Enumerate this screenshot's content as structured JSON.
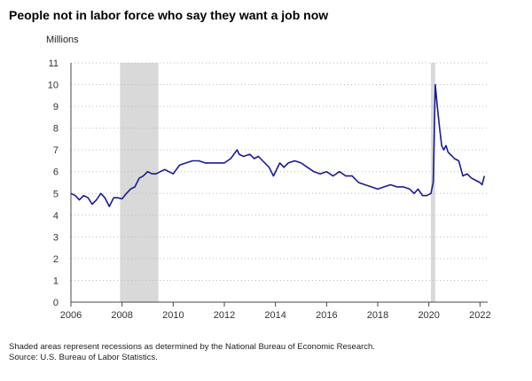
{
  "title": "People not in labor force who say they want a job now",
  "unit_label": "Millions",
  "notes": [
    "Shaded areas represent recessions as determined by the National Bureau of Economic Research.",
    "Source: U.S. Bureau of Labor Statistics."
  ],
  "colors": {
    "line": "#1a1a9a",
    "recession": "#d9d9d9",
    "grid": "#bbbbbb",
    "axis": "#444444"
  },
  "chart_data": {
    "type": "line",
    "title": "People not in labor force who say they want a job now",
    "ylabel": "Millions",
    "ylim": [
      0,
      11
    ],
    "yticks": [
      0,
      1,
      2,
      3,
      4,
      5,
      6,
      7,
      8,
      9,
      10,
      11
    ],
    "xlim": [
      2006,
      2022.3
    ],
    "xticks": [
      2006,
      2008,
      2010,
      2012,
      2014,
      2016,
      2018,
      2020,
      2022
    ],
    "grid": "horizontal dotted",
    "recessions": [
      [
        2007.92,
        2009.42
      ],
      [
        2020.08,
        2020.25
      ]
    ],
    "series": [
      {
        "x": [
          2006.0,
          2006.17,
          2006.33,
          2006.5,
          2006.67,
          2006.83,
          2007.0,
          2007.17,
          2007.33,
          2007.5,
          2007.67,
          2007.83,
          2008.0,
          2008.17,
          2008.33,
          2008.5,
          2008.67,
          2008.83,
          2009.0,
          2009.17,
          2009.33,
          2009.5,
          2009.67,
          2009.83,
          2010.0,
          2010.25,
          2010.5,
          2010.75,
          2011.0,
          2011.25,
          2011.5,
          2011.75,
          2012.0,
          2012.25,
          2012.5,
          2012.58,
          2012.75,
          2013.0,
          2013.17,
          2013.33,
          2013.5,
          2013.75,
          2013.92,
          2014.17,
          2014.33,
          2014.5,
          2014.75,
          2015.0,
          2015.25,
          2015.5,
          2015.75,
          2016.0,
          2016.25,
          2016.5,
          2016.75,
          2017.0,
          2017.25,
          2017.5,
          2017.75,
          2018.0,
          2018.25,
          2018.5,
          2018.75,
          2019.0,
          2019.25,
          2019.42,
          2019.58,
          2019.75,
          2019.92,
          2020.08,
          2020.17,
          2020.25,
          2020.33,
          2020.42,
          2020.5,
          2020.58,
          2020.67,
          2020.75,
          2020.83,
          2020.92,
          2021.0,
          2021.17,
          2021.33,
          2021.5,
          2021.58,
          2021.67,
          2021.83,
          2022.0,
          2022.08,
          2022.17
        ],
        "values": [
          5.0,
          4.9,
          4.7,
          4.9,
          4.8,
          4.5,
          4.7,
          5.0,
          4.8,
          4.4,
          4.8,
          4.8,
          4.75,
          5.0,
          5.2,
          5.3,
          5.7,
          5.8,
          6.0,
          5.9,
          5.9,
          6.0,
          6.1,
          6.0,
          5.9,
          6.3,
          6.4,
          6.5,
          6.5,
          6.4,
          6.4,
          6.4,
          6.4,
          6.6,
          7.0,
          6.8,
          6.7,
          6.8,
          6.6,
          6.7,
          6.5,
          6.2,
          5.8,
          6.4,
          6.2,
          6.4,
          6.5,
          6.4,
          6.2,
          6.0,
          5.9,
          6.0,
          5.8,
          6.0,
          5.8,
          5.8,
          5.5,
          5.4,
          5.3,
          5.2,
          5.3,
          5.4,
          5.3,
          5.3,
          5.2,
          5.0,
          5.2,
          4.9,
          4.9,
          5.0,
          5.5,
          10.0,
          9.0,
          8.0,
          7.2,
          7.0,
          7.2,
          6.9,
          6.8,
          6.7,
          6.6,
          6.5,
          5.8,
          5.9,
          5.8,
          5.7,
          5.6,
          5.5,
          5.4,
          5.8
        ]
      }
    ]
  }
}
